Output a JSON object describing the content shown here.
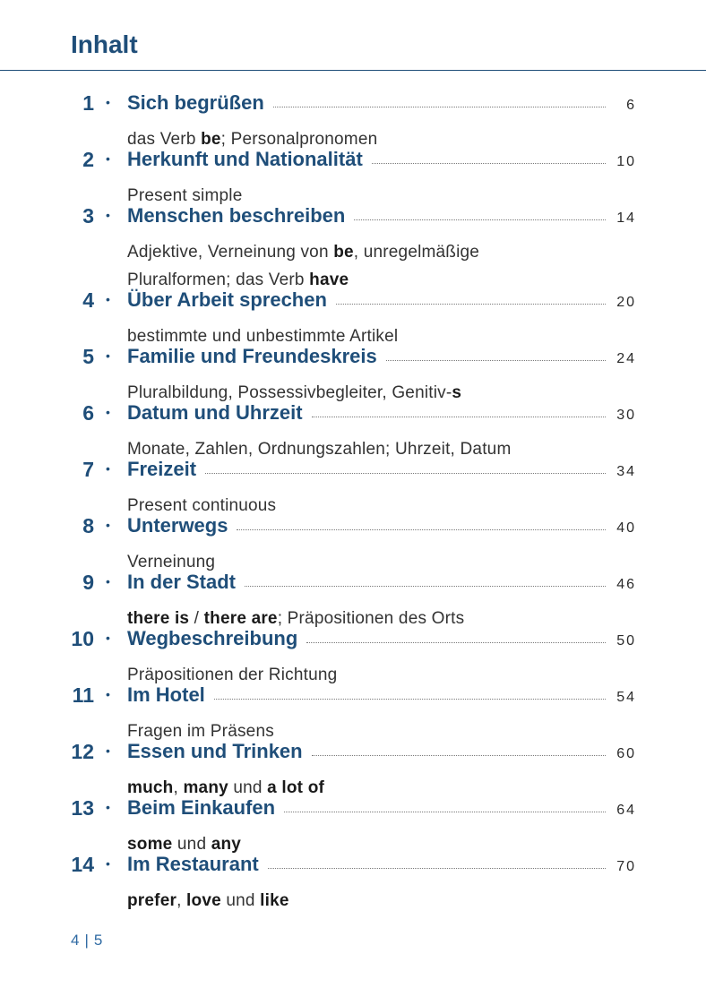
{
  "header": {
    "title": "Inhalt"
  },
  "entries": [
    {
      "num": "1",
      "title": "Sich begrüßen",
      "page": "6",
      "subtitle": [
        [
          {
            "t": "das Verb "
          },
          {
            "t": "be",
            "b": true
          },
          {
            "t": "; Personalpronomen"
          }
        ]
      ]
    },
    {
      "num": "2",
      "title": "Herkunft und Nationalität",
      "page": "10",
      "subtitle": [
        [
          {
            "t": "Present simple"
          }
        ]
      ]
    },
    {
      "num": "3",
      "title": "Menschen beschreiben",
      "page": "14",
      "subtitle": [
        [
          {
            "t": "Adjektive, Verneinung von "
          },
          {
            "t": "be",
            "b": true
          },
          {
            "t": ", unregelmäßige"
          }
        ],
        [
          {
            "t": "Pluralformen; das Verb "
          },
          {
            "t": "have",
            "b": true
          }
        ]
      ]
    },
    {
      "num": "4",
      "title": "Über Arbeit sprechen",
      "page": "20",
      "subtitle": [
        [
          {
            "t": "bestimmte und unbestimmte Artikel"
          }
        ]
      ]
    },
    {
      "num": "5",
      "title": "Familie und Freundeskreis",
      "page": "24",
      "subtitle": [
        [
          {
            "t": "Pluralbildung, Possessivbegleiter, Genitiv-"
          },
          {
            "t": "s",
            "b": true
          }
        ]
      ]
    },
    {
      "num": "6",
      "title": "Datum und Uhrzeit",
      "page": "30",
      "subtitle": [
        [
          {
            "t": "Monate, Zahlen, Ordnungszahlen; Uhrzeit, Datum"
          }
        ]
      ]
    },
    {
      "num": "7",
      "title": "Freizeit",
      "page": "34",
      "subtitle": [
        [
          {
            "t": "Present continuous"
          }
        ]
      ]
    },
    {
      "num": "8",
      "title": "Unterwegs",
      "page": "40",
      "subtitle": [
        [
          {
            "t": "Verneinung"
          }
        ]
      ]
    },
    {
      "num": "9",
      "title": "In der Stadt",
      "page": "46",
      "subtitle": [
        [
          {
            "t": "there is",
            "b": true
          },
          {
            "t": " / "
          },
          {
            "t": "there are",
            "b": true
          },
          {
            "t": "; Präpositionen des Orts"
          }
        ]
      ]
    },
    {
      "num": "10",
      "title": "Wegbeschreibung",
      "page": "50",
      "subtitle": [
        [
          {
            "t": "Präpositionen der Richtung"
          }
        ]
      ]
    },
    {
      "num": "11",
      "title": "Im Hotel",
      "page": "54",
      "subtitle": [
        [
          {
            "t": "Fragen im Präsens"
          }
        ]
      ]
    },
    {
      "num": "12",
      "title": "Essen und Trinken",
      "page": "60",
      "subtitle": [
        [
          {
            "t": "much",
            "b": true
          },
          {
            "t": ", "
          },
          {
            "t": "many",
            "b": true
          },
          {
            "t": " und "
          },
          {
            "t": "a lot of",
            "b": true
          }
        ]
      ]
    },
    {
      "num": "13",
      "title": "Beim Einkaufen",
      "page": "64",
      "subtitle": [
        [
          {
            "t": "some",
            "b": true
          },
          {
            "t": " und "
          },
          {
            "t": "any",
            "b": true
          }
        ]
      ]
    },
    {
      "num": "14",
      "title": "Im Restaurant",
      "page": "70",
      "subtitle": [
        [
          {
            "t": "prefer",
            "b": true
          },
          {
            "t": ", "
          },
          {
            "t": "love",
            "b": true
          },
          {
            "t": " und "
          },
          {
            "t": "like",
            "b": true
          }
        ]
      ]
    }
  ],
  "footer": {
    "page_left": "4",
    "page_right": "5"
  },
  "colors": {
    "accent": "#1f4e79",
    "folio": "#2f6aa3"
  }
}
